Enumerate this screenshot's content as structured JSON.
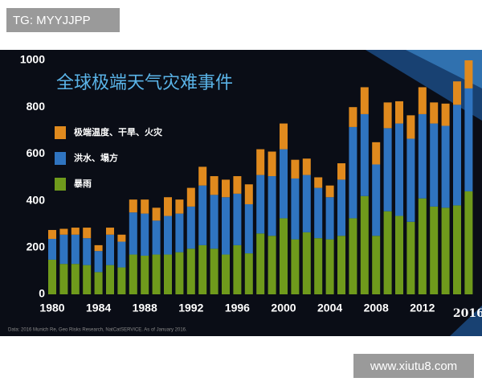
{
  "watermarks": [
    "TG: MYYJJPP",
    "www.xiutu8.com"
  ],
  "chart_data": {
    "type": "stacked-bar",
    "title": "全球极端天气灾难事件",
    "source": "Data: 2016 Munich Re, Geo Risks Research, NatCatSERVICE. As of January 2016.",
    "categories": [
      "1980",
      null,
      null,
      null,
      "1984",
      null,
      null,
      null,
      "1988",
      null,
      null,
      null,
      "1992",
      null,
      null,
      null,
      "1996",
      null,
      null,
      null,
      "2000",
      null,
      null,
      null,
      "2004",
      null,
      null,
      null,
      "2008",
      null,
      null,
      null,
      "2012",
      null,
      null,
      null,
      "2016"
    ],
    "series": [
      {
        "name": "极端温度、干旱、火灾",
        "color": "#e08a1e",
        "values": [
          38,
          25,
          30,
          45,
          25,
          30,
          30,
          55,
          60,
          55,
          80,
          60,
          80,
          80,
          80,
          75,
          75,
          85,
          110,
          105,
          110,
          80,
          70,
          45,
          50,
          70,
          85,
          115,
          95,
          110,
          95,
          100,
          115,
          90,
          95,
          100,
          120
        ]
      },
      {
        "name": "洪水、塌方",
        "color": "#2f74c0",
        "values": [
          89,
          125,
          125,
          115,
          90,
          130,
          110,
          180,
          180,
          145,
          165,
          165,
          180,
          255,
          230,
          245,
          220,
          210,
          250,
          255,
          295,
          260,
          245,
          215,
          180,
          240,
          390,
          350,
          305,
          355,
          395,
          355,
          360,
          355,
          350,
          430,
          440
        ]
      },
      {
        "name": "暴雨",
        "color": "#6f9a1c",
        "values": [
          148,
          130,
          130,
          125,
          95,
          125,
          115,
          170,
          165,
          170,
          170,
          180,
          195,
          210,
          195,
          170,
          210,
          175,
          260,
          250,
          325,
          235,
          265,
          240,
          235,
          250,
          325,
          420,
          250,
          355,
          335,
          310,
          410,
          375,
          370,
          380,
          440
        ]
      }
    ],
    "ylim": [
      0,
      1000
    ],
    "yticks": [
      0,
      200,
      400,
      600,
      800,
      1000
    ],
    "grid": false
  }
}
